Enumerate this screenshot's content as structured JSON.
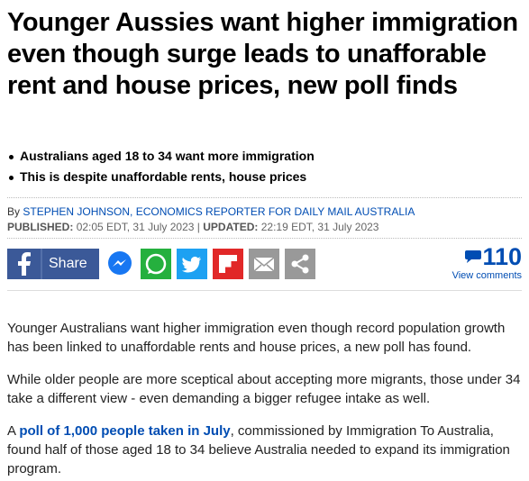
{
  "article": {
    "headline": "Younger Aussies want higher immigration even though surge leads to unafforable rent and house prices, new poll finds",
    "bullets": [
      "Australians aged 18 to 34 want more immigration",
      "This is despite unaffordable rents, house prices"
    ],
    "byline": {
      "prefix": "By",
      "author": "STEPHEN JOHNSON, ECONOMICS REPORTER FOR DAILY MAIL AUSTRALIA"
    },
    "dates": {
      "published_label": "PUBLISHED:",
      "published": "02:05 EDT, 31 July 2023",
      "separator": "|",
      "updated_label": "UPDATED:",
      "updated": "22:19 EDT, 31 July 2023"
    },
    "share": {
      "button": "Share",
      "comment_count": "110",
      "comments_link": "View comments"
    },
    "paragraphs": [
      "Younger Australians want higher immigration even though record population growth has been linked to unaffordable rents and house prices, a new poll has found.",
      "While older people are more sceptical about accepting more migrants, those under 34 take a different view - even demanding a bigger refugee intake as well.",
      {
        "before": "A",
        "link": "poll of 1,000 people taken in July",
        "after": ", commissioned by Immigration To Australia, found half of those aged 18 to 34 believe Australia needed to expand its immigration program."
      }
    ]
  }
}
